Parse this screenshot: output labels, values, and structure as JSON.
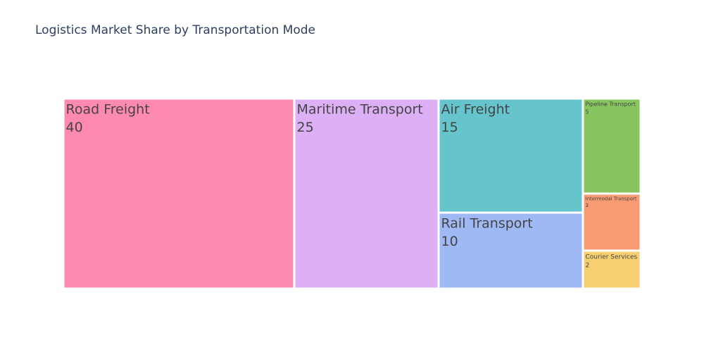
{
  "chart_data": {
    "type": "treemap",
    "title": "Logistics Market Share by Transportation Mode",
    "items": [
      {
        "label": "Road Freight",
        "value": 40,
        "color": "#ff8ab0"
      },
      {
        "label": "Maritime Transport",
        "value": 25,
        "color": "#ddb0f5"
      },
      {
        "label": "Air Freight",
        "value": 15,
        "color": "#66c5cc"
      },
      {
        "label": "Rail Transport",
        "value": 10,
        "color": "#9eb9f3"
      },
      {
        "label": "Pipeline Transport",
        "value": 5,
        "color": "#87c55f"
      },
      {
        "label": "Intermodal Transport",
        "value": 3,
        "color": "#f89c74"
      },
      {
        "label": "Courier Services",
        "value": 2,
        "color": "#f6cf71"
      }
    ]
  }
}
